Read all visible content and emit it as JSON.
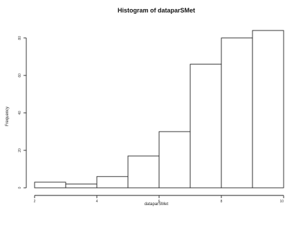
{
  "chart_data": {
    "type": "bar",
    "title": "Histogram of dataparSMet",
    "xlabel": "dataparSMet",
    "ylabel": "Frequency",
    "bins": [
      {
        "x0": 2,
        "x1": 3,
        "value": 3
      },
      {
        "x0": 3,
        "x1": 4,
        "value": 2
      },
      {
        "x0": 4,
        "x1": 5,
        "value": 6
      },
      {
        "x0": 5,
        "x1": 6,
        "value": 17
      },
      {
        "x0": 6,
        "x1": 7,
        "value": 30
      },
      {
        "x0": 7,
        "x1": 8,
        "value": 66
      },
      {
        "x0": 8,
        "x1": 9,
        "value": 80
      },
      {
        "x0": 9,
        "x1": 10,
        "value": 84
      }
    ],
    "xlim": [
      2,
      10
    ],
    "ylim": [
      0,
      84
    ],
    "xticks": [
      {
        "value": 2,
        "label": "2"
      },
      {
        "value": 4,
        "label": "4"
      },
      {
        "value": 6,
        "label": "6"
      },
      {
        "value": 8,
        "label": "8"
      },
      {
        "value": 10,
        "label": "10"
      }
    ],
    "yticks": [
      {
        "value": 0,
        "label": "0"
      },
      {
        "value": 20,
        "label": "20"
      },
      {
        "value": 40,
        "label": "40"
      },
      {
        "value": 60,
        "label": "60"
      },
      {
        "value": 80,
        "label": "80"
      }
    ],
    "grid": false,
    "legend": "none"
  }
}
